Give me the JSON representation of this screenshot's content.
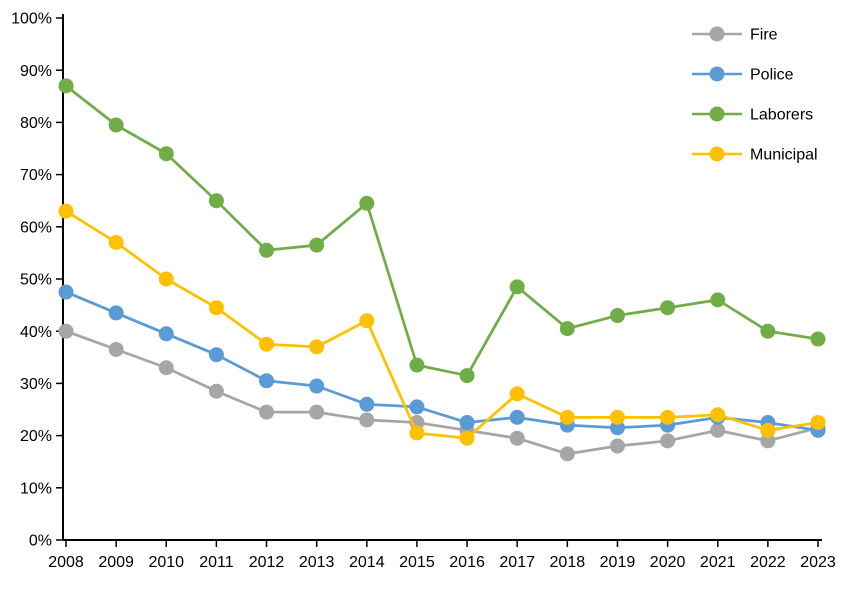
{
  "chart_data": {
    "type": "line",
    "title": "",
    "xlabel": "",
    "ylabel": "",
    "categories": [
      "2008",
      "2009",
      "2010",
      "2011",
      "2012",
      "2013",
      "2014",
      "2015",
      "2016",
      "2017",
      "2018",
      "2019",
      "2020",
      "2021",
      "2022",
      "2023"
    ],
    "series": [
      {
        "name": "Fire",
        "color": "#a6a6a6",
        "values": [
          40,
          36.5,
          33,
          28.5,
          24.5,
          24.5,
          23,
          22.5,
          21,
          19.5,
          16.5,
          18,
          19,
          21,
          19,
          21.5
        ]
      },
      {
        "name": "Police",
        "color": "#5b9bd5",
        "values": [
          47.5,
          43.5,
          39.5,
          35.5,
          30.5,
          29.5,
          26,
          25.5,
          22.5,
          23.5,
          22,
          21.5,
          22,
          23.5,
          22.5,
          21
        ]
      },
      {
        "name": "Laborers",
        "color": "#70ad47",
        "values": [
          87,
          79.5,
          74,
          65,
          55.5,
          56.5,
          64.5,
          33.5,
          31.5,
          48.5,
          40.5,
          43,
          44.5,
          46,
          40,
          38.5
        ]
      },
      {
        "name": "Municipal",
        "color": "#ffc000",
        "values": [
          63,
          57,
          50,
          44.5,
          37.5,
          37,
          42,
          20.5,
          19.5,
          28,
          23.5,
          23.5,
          23.5,
          24,
          21,
          22.5
        ]
      }
    ],
    "ylim": [
      0,
      100
    ],
    "y_tick_step": 10,
    "y_tick_labels": [
      "0%",
      "10%",
      "20%",
      "30%",
      "40%",
      "50%",
      "60%",
      "70%",
      "80%",
      "90%",
      "100%"
    ],
    "grid": false,
    "legend_position": "top-right",
    "marker_style": "circle",
    "axis_color": "#000000",
    "background": "#ffffff"
  }
}
